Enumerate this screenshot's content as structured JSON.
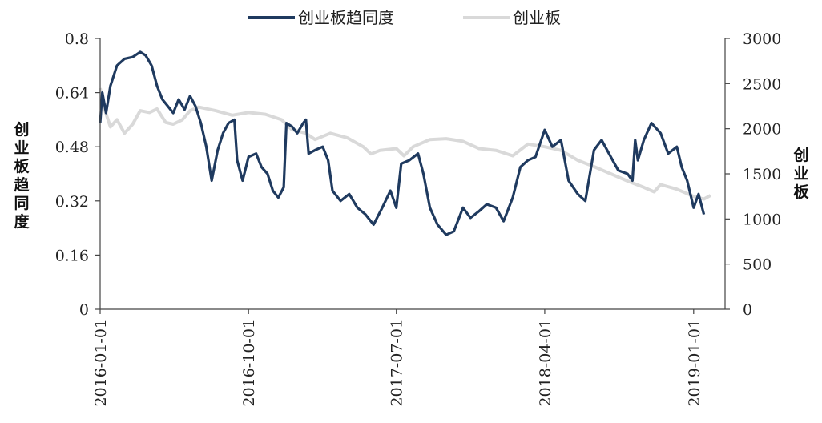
{
  "chart_data": {
    "type": "line",
    "legend_position": "top",
    "grid": false,
    "left_axis": {
      "label": "创业板趋同度",
      "min": 0,
      "max": 0.8,
      "ticks": [
        "0",
        "0.16",
        "0.32",
        "0.48",
        "0.64",
        "0.8"
      ]
    },
    "right_axis": {
      "label": "创业板",
      "min": 0,
      "max": 3000,
      "ticks": [
        "0",
        "500",
        "1000",
        "1500",
        "2000",
        "2500",
        "3000"
      ]
    },
    "x_axis": {
      "start": "2016-01-01",
      "end": "2019-02-28",
      "ticks": [
        "2016-01-01",
        "2016-10-01",
        "2017-07-01",
        "2018-04-01",
        "2019-01-01"
      ]
    },
    "series": [
      {
        "name": "创业板趋同度",
        "axis": "left",
        "color": "#1f3a5f",
        "points": [
          [
            "2016-01-01",
            0.55
          ],
          [
            "2016-01-05",
            0.64
          ],
          [
            "2016-01-12",
            0.58
          ],
          [
            "2016-01-20",
            0.66
          ],
          [
            "2016-02-01",
            0.72
          ],
          [
            "2016-02-15",
            0.74
          ],
          [
            "2016-03-01",
            0.745
          ],
          [
            "2016-03-15",
            0.76
          ],
          [
            "2016-03-25",
            0.75
          ],
          [
            "2016-04-05",
            0.72
          ],
          [
            "2016-04-15",
            0.66
          ],
          [
            "2016-04-25",
            0.62
          ],
          [
            "2016-05-05",
            0.6
          ],
          [
            "2016-05-15",
            0.58
          ],
          [
            "2016-05-25",
            0.62
          ],
          [
            "2016-06-05",
            0.59
          ],
          [
            "2016-06-15",
            0.63
          ],
          [
            "2016-06-25",
            0.6
          ],
          [
            "2016-07-05",
            0.55
          ],
          [
            "2016-07-15",
            0.48
          ],
          [
            "2016-07-25",
            0.38
          ],
          [
            "2016-08-05",
            0.47
          ],
          [
            "2016-08-15",
            0.52
          ],
          [
            "2016-08-25",
            0.55
          ],
          [
            "2016-09-05",
            0.56
          ],
          [
            "2016-09-10",
            0.44
          ],
          [
            "2016-09-20",
            0.38
          ],
          [
            "2016-10-01",
            0.45
          ],
          [
            "2016-10-15",
            0.46
          ],
          [
            "2016-10-25",
            0.42
          ],
          [
            "2016-11-05",
            0.4
          ],
          [
            "2016-11-15",
            0.35
          ],
          [
            "2016-11-25",
            0.33
          ],
          [
            "2016-12-05",
            0.36
          ],
          [
            "2016-12-10",
            0.55
          ],
          [
            "2016-12-20",
            0.54
          ],
          [
            "2016-12-30",
            0.52
          ],
          [
            "2017-01-10",
            0.55
          ],
          [
            "2017-01-15",
            0.56
          ],
          [
            "2017-01-20",
            0.46
          ],
          [
            "2017-02-01",
            0.47
          ],
          [
            "2017-02-15",
            0.48
          ],
          [
            "2017-02-25",
            0.44
          ],
          [
            "2017-03-05",
            0.35
          ],
          [
            "2017-03-20",
            0.32
          ],
          [
            "2017-04-05",
            0.34
          ],
          [
            "2017-04-20",
            0.3
          ],
          [
            "2017-05-05",
            0.28
          ],
          [
            "2017-05-20",
            0.25
          ],
          [
            "2017-06-05",
            0.3
          ],
          [
            "2017-06-20",
            0.35
          ],
          [
            "2017-07-01",
            0.3
          ],
          [
            "2017-07-10",
            0.43
          ],
          [
            "2017-07-25",
            0.44
          ],
          [
            "2017-08-10",
            0.46
          ],
          [
            "2017-08-20",
            0.4
          ],
          [
            "2017-09-01",
            0.3
          ],
          [
            "2017-09-15",
            0.25
          ],
          [
            "2017-10-01",
            0.22
          ],
          [
            "2017-10-15",
            0.23
          ],
          [
            "2017-11-01",
            0.3
          ],
          [
            "2017-11-15",
            0.27
          ],
          [
            "2017-12-01",
            0.29
          ],
          [
            "2017-12-15",
            0.31
          ],
          [
            "2018-01-01",
            0.3
          ],
          [
            "2018-01-15",
            0.26
          ],
          [
            "2018-02-01",
            0.33
          ],
          [
            "2018-02-15",
            0.42
          ],
          [
            "2018-03-01",
            0.44
          ],
          [
            "2018-03-15",
            0.45
          ],
          [
            "2018-04-01",
            0.53
          ],
          [
            "2018-04-15",
            0.48
          ],
          [
            "2018-05-01",
            0.5
          ],
          [
            "2018-05-15",
            0.38
          ],
          [
            "2018-06-01",
            0.34
          ],
          [
            "2018-06-15",
            0.32
          ],
          [
            "2018-07-01",
            0.47
          ],
          [
            "2018-07-15",
            0.5
          ],
          [
            "2018-08-01",
            0.45
          ],
          [
            "2018-08-15",
            0.41
          ],
          [
            "2018-09-01",
            0.4
          ],
          [
            "2018-09-10",
            0.38
          ],
          [
            "2018-09-15",
            0.5
          ],
          [
            "2018-09-20",
            0.44
          ],
          [
            "2018-10-01",
            0.5
          ],
          [
            "2018-10-15",
            0.55
          ],
          [
            "2018-11-01",
            0.52
          ],
          [
            "2018-11-15",
            0.46
          ],
          [
            "2018-12-01",
            0.48
          ],
          [
            "2018-12-10",
            0.42
          ],
          [
            "2018-12-20",
            0.38
          ],
          [
            "2019-01-01",
            0.3
          ],
          [
            "2019-01-10",
            0.34
          ],
          [
            "2019-01-20",
            0.28
          ]
        ]
      },
      {
        "name": "创业板",
        "axis": "right",
        "color": "#d9d9d9",
        "points": [
          [
            "2016-01-01",
            2450
          ],
          [
            "2016-01-10",
            2200
          ],
          [
            "2016-01-20",
            2020
          ],
          [
            "2016-02-01",
            2100
          ],
          [
            "2016-02-15",
            1950
          ],
          [
            "2016-03-01",
            2050
          ],
          [
            "2016-03-15",
            2200
          ],
          [
            "2016-04-01",
            2180
          ],
          [
            "2016-04-15",
            2220
          ],
          [
            "2016-05-01",
            2070
          ],
          [
            "2016-05-15",
            2050
          ],
          [
            "2016-06-01",
            2100
          ],
          [
            "2016-06-15",
            2200
          ],
          [
            "2016-07-01",
            2240
          ],
          [
            "2016-08-01",
            2200
          ],
          [
            "2016-09-01",
            2150
          ],
          [
            "2016-10-01",
            2180
          ],
          [
            "2016-11-01",
            2160
          ],
          [
            "2016-12-01",
            2100
          ],
          [
            "2016-12-20",
            1990
          ],
          [
            "2017-01-15",
            1950
          ],
          [
            "2017-02-01",
            1880
          ],
          [
            "2017-03-01",
            1950
          ],
          [
            "2017-04-01",
            1900
          ],
          [
            "2017-05-01",
            1800
          ],
          [
            "2017-05-15",
            1720
          ],
          [
            "2017-06-01",
            1760
          ],
          [
            "2017-07-01",
            1780
          ],
          [
            "2017-07-15",
            1700
          ],
          [
            "2017-08-01",
            1800
          ],
          [
            "2017-09-01",
            1880
          ],
          [
            "2017-10-01",
            1890
          ],
          [
            "2017-11-01",
            1860
          ],
          [
            "2017-12-01",
            1780
          ],
          [
            "2018-01-01",
            1760
          ],
          [
            "2018-02-01",
            1700
          ],
          [
            "2018-03-01",
            1830
          ],
          [
            "2018-04-01",
            1800
          ],
          [
            "2018-05-01",
            1760
          ],
          [
            "2018-06-01",
            1650
          ],
          [
            "2018-07-01",
            1580
          ],
          [
            "2018-08-01",
            1500
          ],
          [
            "2018-09-01",
            1420
          ],
          [
            "2018-10-01",
            1350
          ],
          [
            "2018-10-20",
            1300
          ],
          [
            "2018-11-01",
            1380
          ],
          [
            "2018-12-01",
            1330
          ],
          [
            "2019-01-01",
            1250
          ],
          [
            "2019-01-20",
            1220
          ],
          [
            "2019-02-01",
            1260
          ]
        ]
      }
    ]
  }
}
